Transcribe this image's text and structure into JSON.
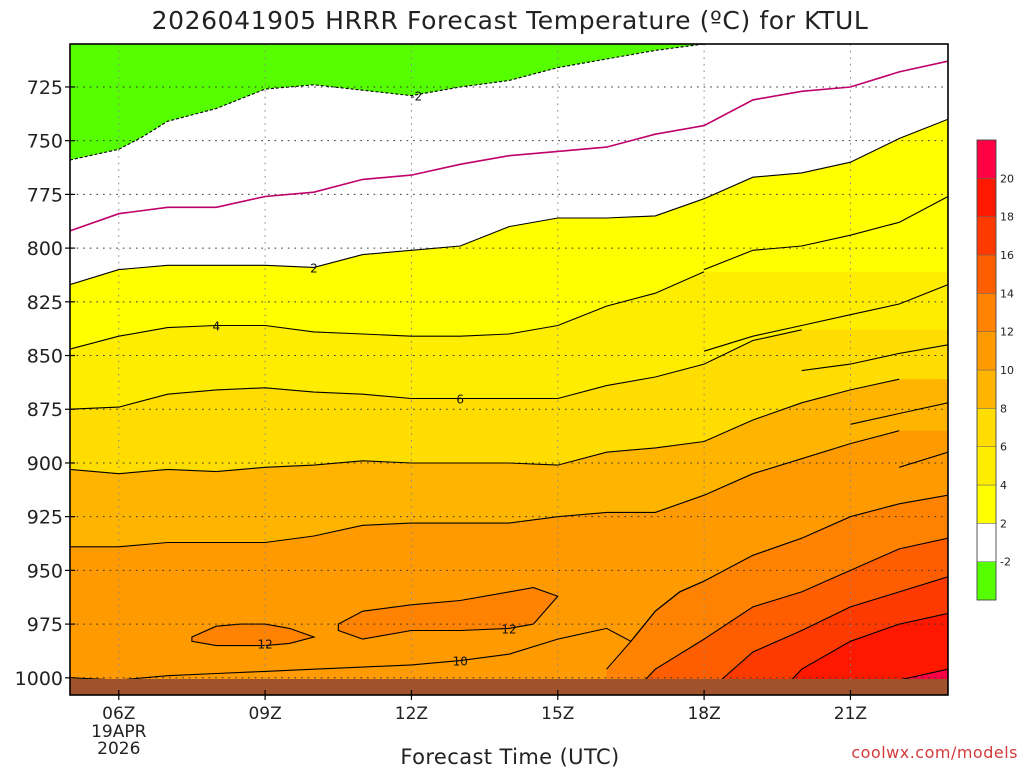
{
  "chart_data": {
    "type": "time-height contour",
    "title": "2026041905 HRRR Forecast Temperature (ºC) for KTUL",
    "xlabel": "Forecast Time (UTC)",
    "ylabel": "",
    "credit": "coolwx.com/models",
    "x_range_hours": [
      5,
      23
    ],
    "y_range_hpa": [
      1008,
      705
    ],
    "x_ticks": [
      {
        "hour": 6,
        "label": "06Z",
        "sub": [
          "19APR",
          "2026"
        ]
      },
      {
        "hour": 9,
        "label": "09Z",
        "sub": []
      },
      {
        "hour": 12,
        "label": "12Z",
        "sub": []
      },
      {
        "hour": 15,
        "label": "15Z",
        "sub": []
      },
      {
        "hour": 18,
        "label": "18Z",
        "sub": []
      },
      {
        "hour": 21,
        "label": "21Z",
        "sub": []
      }
    ],
    "y_ticks": [
      725,
      750,
      775,
      800,
      825,
      850,
      875,
      900,
      925,
      950,
      975,
      1000
    ],
    "colorbar": {
      "bands": [
        {
          "from": -4,
          "to": -2,
          "color": "#55ff00"
        },
        {
          "from": -2,
          "to": 2,
          "color": "#ffffff"
        },
        {
          "from": 2,
          "to": 4,
          "color": "#ffff00"
        },
        {
          "from": 4,
          "to": 6,
          "color": "#ffed00"
        },
        {
          "from": 6,
          "to": 8,
          "color": "#ffdd00"
        },
        {
          "from": 8,
          "to": 10,
          "color": "#ffb400"
        },
        {
          "from": 10,
          "to": 12,
          "color": "#ff9a00"
        },
        {
          "from": 12,
          "to": 14,
          "color": "#ff8200"
        },
        {
          "from": 14,
          "to": 16,
          "color": "#ff5e00"
        },
        {
          "from": 16,
          "to": 18,
          "color": "#ff3a00"
        },
        {
          "from": 18,
          "to": 20,
          "color": "#ff1800"
        },
        {
          "from": 20,
          "to": 22,
          "color": "#ff0044"
        }
      ],
      "labels": [
        "-2",
        "2",
        "4",
        "6",
        "8",
        "10",
        "12",
        "14",
        "16",
        "18",
        "20"
      ]
    },
    "below_ground_color": "#a0522d",
    "contours": [
      {
        "level": -2,
        "style": "dashed",
        "color": "#000000",
        "points": [
          [
            5,
            759
          ],
          [
            6,
            754
          ],
          [
            6.5,
            748
          ],
          [
            7,
            741
          ],
          [
            8,
            735
          ],
          [
            9,
            726
          ],
          [
            10,
            724
          ],
          [
            12,
            729
          ],
          [
            13,
            725
          ],
          [
            14,
            722
          ],
          [
            15,
            716
          ],
          [
            16,
            712
          ],
          [
            17,
            708
          ],
          [
            18,
            705
          ]
        ]
      },
      {
        "level": 0,
        "style": "solid",
        "color": "#c0006a",
        "points": [
          [
            5,
            792
          ],
          [
            6,
            784
          ],
          [
            7,
            781
          ],
          [
            8,
            781
          ],
          [
            9,
            776
          ],
          [
            10,
            774
          ],
          [
            11,
            768
          ],
          [
            12,
            766
          ],
          [
            13,
            761
          ],
          [
            14,
            757
          ],
          [
            15,
            755
          ],
          [
            16,
            753
          ],
          [
            17,
            747
          ],
          [
            18,
            743
          ],
          [
            19,
            731
          ],
          [
            20,
            727
          ],
          [
            21,
            725
          ],
          [
            22,
            718
          ],
          [
            23,
            713
          ]
        ]
      },
      {
        "level": 2,
        "style": "solid",
        "color": "#000000",
        "points": [
          [
            5,
            817
          ],
          [
            6,
            810
          ],
          [
            7,
            808
          ],
          [
            8,
            808
          ],
          [
            9,
            808
          ],
          [
            10,
            809
          ],
          [
            11,
            803
          ],
          [
            12,
            801
          ],
          [
            13,
            799
          ],
          [
            14,
            790
          ],
          [
            15,
            786
          ],
          [
            16,
            786
          ],
          [
            17,
            785
          ],
          [
            18,
            777
          ],
          [
            19,
            767
          ],
          [
            20,
            765
          ],
          [
            21,
            760
          ],
          [
            22,
            749
          ],
          [
            23,
            740
          ]
        ]
      },
      {
        "level": 3,
        "style": "solid",
        "color": "#000000",
        "points": [
          [
            18,
            810
          ],
          [
            19,
            801
          ],
          [
            20,
            799
          ],
          [
            21,
            794
          ],
          [
            22,
            788
          ],
          [
            23,
            776
          ]
        ]
      },
      {
        "level": 4,
        "style": "solid",
        "color": "#000000",
        "points": [
          [
            5,
            847
          ],
          [
            6,
            841
          ],
          [
            7,
            837
          ],
          [
            8,
            836
          ],
          [
            9,
            836
          ],
          [
            10,
            839
          ],
          [
            11,
            840
          ],
          [
            12,
            841
          ],
          [
            13,
            841
          ],
          [
            14,
            840
          ],
          [
            15,
            836
          ],
          [
            16,
            827
          ],
          [
            17,
            821
          ],
          [
            18,
            811
          ]
        ]
      },
      {
        "level": 5,
        "style": "solid",
        "color": "#000000",
        "points": [
          [
            18,
            848
          ],
          [
            19,
            841
          ],
          [
            20,
            836
          ],
          [
            21,
            831
          ],
          [
            22,
            826
          ],
          [
            23,
            817
          ]
        ]
      },
      {
        "level": 6,
        "style": "solid",
        "color": "#000000",
        "points": [
          [
            5,
            875
          ],
          [
            6,
            874
          ],
          [
            7,
            868
          ],
          [
            8,
            866
          ],
          [
            9,
            865
          ],
          [
            10,
            867
          ],
          [
            11,
            868
          ],
          [
            12,
            870
          ],
          [
            13,
            870
          ],
          [
            14,
            870
          ],
          [
            15,
            870
          ],
          [
            16,
            864
          ],
          [
            17,
            860
          ],
          [
            18,
            854
          ],
          [
            19,
            843
          ],
          [
            20,
            838
          ]
        ]
      },
      {
        "level": 7,
        "style": "solid",
        "color": "#000000",
        "points": [
          [
            20,
            857
          ],
          [
            21,
            854
          ],
          [
            22,
            849
          ],
          [
            23,
            845
          ]
        ]
      },
      {
        "level": 8,
        "style": "solid",
        "color": "#000000",
        "points": [
          [
            5,
            903
          ],
          [
            6,
            905
          ],
          [
            7,
            903
          ],
          [
            8,
            904
          ],
          [
            9,
            902
          ],
          [
            10,
            901
          ],
          [
            11,
            899
          ],
          [
            12,
            900
          ],
          [
            13,
            900
          ],
          [
            14,
            900
          ],
          [
            15,
            901
          ],
          [
            16,
            895
          ],
          [
            17,
            893
          ],
          [
            18,
            890
          ],
          [
            19,
            880
          ],
          [
            20,
            872
          ],
          [
            21,
            866
          ],
          [
            22,
            861
          ]
        ]
      },
      {
        "level": 9,
        "style": "solid",
        "color": "#000000",
        "points": [
          [
            21,
            882
          ],
          [
            22,
            877
          ],
          [
            23,
            872
          ]
        ]
      },
      {
        "level": 10,
        "style": "solid",
        "color": "#000000",
        "points": [
          [
            5,
            939
          ],
          [
            6,
            939
          ],
          [
            7,
            937
          ],
          [
            8,
            937
          ],
          [
            9,
            937
          ],
          [
            10,
            934
          ],
          [
            11,
            929
          ],
          [
            12,
            928
          ],
          [
            13,
            928
          ],
          [
            14,
            928
          ],
          [
            15,
            925
          ],
          [
            16,
            923
          ],
          [
            17,
            923
          ],
          [
            18,
            915
          ],
          [
            19,
            905
          ],
          [
            20,
            898
          ],
          [
            21,
            891
          ],
          [
            22,
            885
          ]
        ]
      },
      {
        "level": 11,
        "style": "solid",
        "color": "#000000",
        "points": [
          [
            22,
            902
          ],
          [
            23,
            895
          ]
        ]
      },
      {
        "level": 12,
        "style": "solid",
        "color": "#000000",
        "points": [
          [
            16,
            996
          ],
          [
            16.5,
            983
          ],
          [
            17,
            969
          ],
          [
            17.5,
            960
          ],
          [
            18,
            955
          ],
          [
            19,
            943
          ],
          [
            20,
            935
          ],
          [
            21,
            925
          ],
          [
            22,
            919
          ],
          [
            23,
            915
          ]
        ]
      },
      {
        "level": 13,
        "style": "solid",
        "color": "#000000",
        "points": [
          [
            16.5,
            1008
          ],
          [
            17,
            996
          ],
          [
            18,
            982
          ],
          [
            19,
            967
          ],
          [
            20,
            960
          ],
          [
            21,
            950
          ],
          [
            22,
            940
          ],
          [
            23,
            935
          ]
        ]
      },
      {
        "level": 14,
        "style": "solid",
        "color": "#000000",
        "points": [
          [
            18,
            1008
          ],
          [
            19,
            988
          ],
          [
            20,
            978
          ],
          [
            21,
            967
          ],
          [
            22,
            960
          ],
          [
            23,
            953
          ]
        ]
      },
      {
        "level": 15,
        "style": "solid",
        "color": "#000000",
        "points": [
          [
            19.5,
            1008
          ],
          [
            20,
            996
          ],
          [
            21,
            983
          ],
          [
            22,
            975
          ],
          [
            23,
            970
          ]
        ]
      },
      {
        "level": 16,
        "style": "solid",
        "color": "#000000",
        "points": [
          [
            21,
            1008
          ],
          [
            22,
            1001
          ],
          [
            23,
            996
          ]
        ]
      }
    ],
    "contour_labels": [
      {
        "text": "-2",
        "hour": 12.1,
        "hpa": 729
      },
      {
        "text": "2",
        "hour": 10,
        "hpa": 809
      },
      {
        "text": "4",
        "hour": 8,
        "hpa": 836
      },
      {
        "text": "6",
        "hour": 13,
        "hpa": 870
      },
      {
        "text": "12",
        "hour": 9,
        "hpa": 984
      },
      {
        "text": "10",
        "hour": 13,
        "hpa": 992
      },
      {
        "text": "12",
        "hour": 14,
        "hpa": 977
      }
    ],
    "loops": [
      {
        "level": 12,
        "points": [
          [
            7.5,
            981
          ],
          [
            8,
            976
          ],
          [
            8.5,
            975
          ],
          [
            9,
            975
          ],
          [
            9.5,
            977
          ],
          [
            10,
            981
          ],
          [
            9.5,
            984
          ],
          [
            9,
            985
          ],
          [
            8,
            985
          ],
          [
            7.5,
            983
          ]
        ]
      },
      {
        "level": 12,
        "points": [
          [
            10.5,
            975
          ],
          [
            11,
            969
          ],
          [
            12,
            966
          ],
          [
            13,
            964
          ],
          [
            14,
            960
          ],
          [
            14.5,
            958
          ],
          [
            15,
            962
          ],
          [
            14.5,
            975
          ],
          [
            14,
            977
          ],
          [
            13,
            978
          ],
          [
            12,
            978
          ],
          [
            11,
            982
          ],
          [
            10.5,
            978
          ]
        ]
      }
    ],
    "warm_lobe": {
      "level": 10,
      "points": [
        [
          5,
          1000
        ],
        [
          6,
          1001
        ],
        [
          7,
          999
        ],
        [
          8,
          998
        ],
        [
          9,
          997
        ],
        [
          10,
          996
        ],
        [
          11,
          995
        ],
        [
          12,
          994
        ],
        [
          13,
          992
        ],
        [
          14,
          989
        ],
        [
          15,
          982
        ],
        [
          16,
          977
        ],
        [
          16.5,
          983
        ],
        [
          17,
          969
        ],
        [
          17.5,
          960
        ],
        [
          18,
          955
        ]
      ]
    }
  }
}
